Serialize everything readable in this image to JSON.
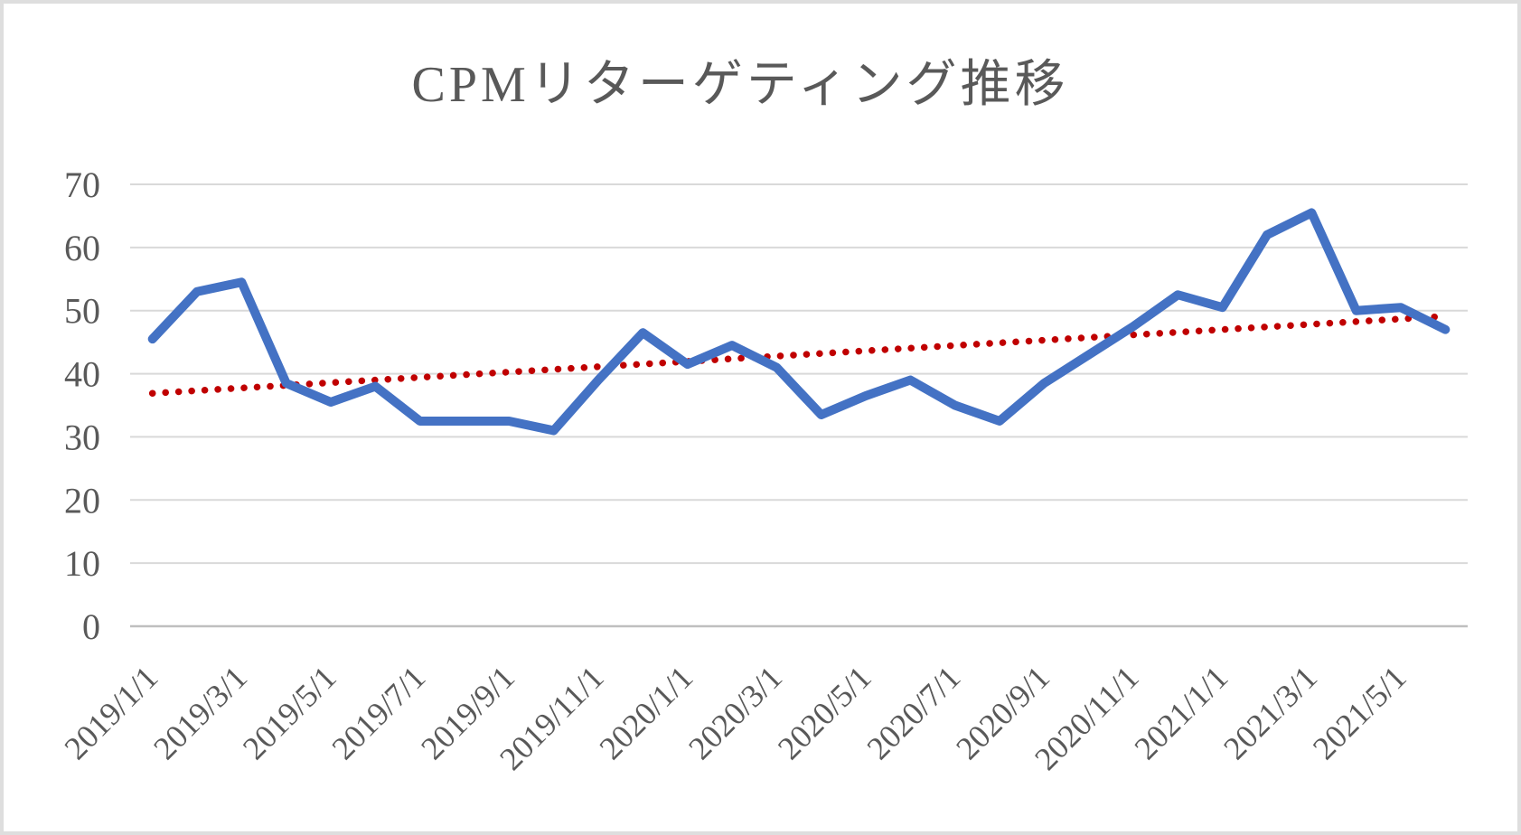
{
  "chart_data": {
    "type": "line",
    "title": "CPMリターゲティング推移",
    "categories": [
      "2019/1/1",
      "2019/2/1",
      "2019/3/1",
      "2019/4/1",
      "2019/5/1",
      "2019/6/1",
      "2019/7/1",
      "2019/8/1",
      "2019/9/1",
      "2019/10/1",
      "2019/11/1",
      "2019/12/1",
      "2020/1/1",
      "2020/2/1",
      "2020/3/1",
      "2020/4/1",
      "2020/5/1",
      "2020/6/1",
      "2020/7/1",
      "2020/8/1",
      "2020/9/1",
      "2020/10/1",
      "2020/11/1",
      "2020/12/1",
      "2021/1/1",
      "2021/2/1",
      "2021/3/1",
      "2021/4/1",
      "2021/5/1",
      "2021/6/1"
    ],
    "series": [
      {
        "name": "CPM",
        "values": [
          45.5,
          53,
          54.5,
          38.5,
          35.5,
          38,
          32.5,
          32.5,
          32.5,
          31,
          39,
          46.5,
          41.5,
          44.5,
          41,
          33.5,
          36.5,
          39,
          35,
          32.5,
          38.5,
          43,
          47.5,
          52.5,
          50.5,
          62,
          65.5,
          50,
          50.5,
          47
        ]
      }
    ],
    "trendline": {
      "type": "linear",
      "style": "dotted",
      "start_value": 36.9,
      "end_value": 49.1
    },
    "x_tick_labels": [
      "2019/1/1",
      "2019/3/1",
      "2019/5/1",
      "2019/7/1",
      "2019/9/1",
      "2019/11/1",
      "2020/1/1",
      "2020/3/1",
      "2020/5/1",
      "2020/7/1",
      "2020/9/1",
      "2020/11/1",
      "2021/1/1",
      "2021/3/1",
      "2021/5/1"
    ],
    "y_ticks": [
      0,
      10,
      20,
      30,
      40,
      50,
      60,
      70
    ],
    "ylim": [
      0,
      70
    ],
    "legend": "none",
    "grid": "horizontal",
    "colors": {
      "series_line": "#4472C4",
      "trendline": "#C00000",
      "gridline": "#D9D9D9",
      "axis_line": "#BFBFBF",
      "label_text": "#595959",
      "background": "#FFFFFF",
      "frame_border": "#DEDEDE"
    }
  }
}
